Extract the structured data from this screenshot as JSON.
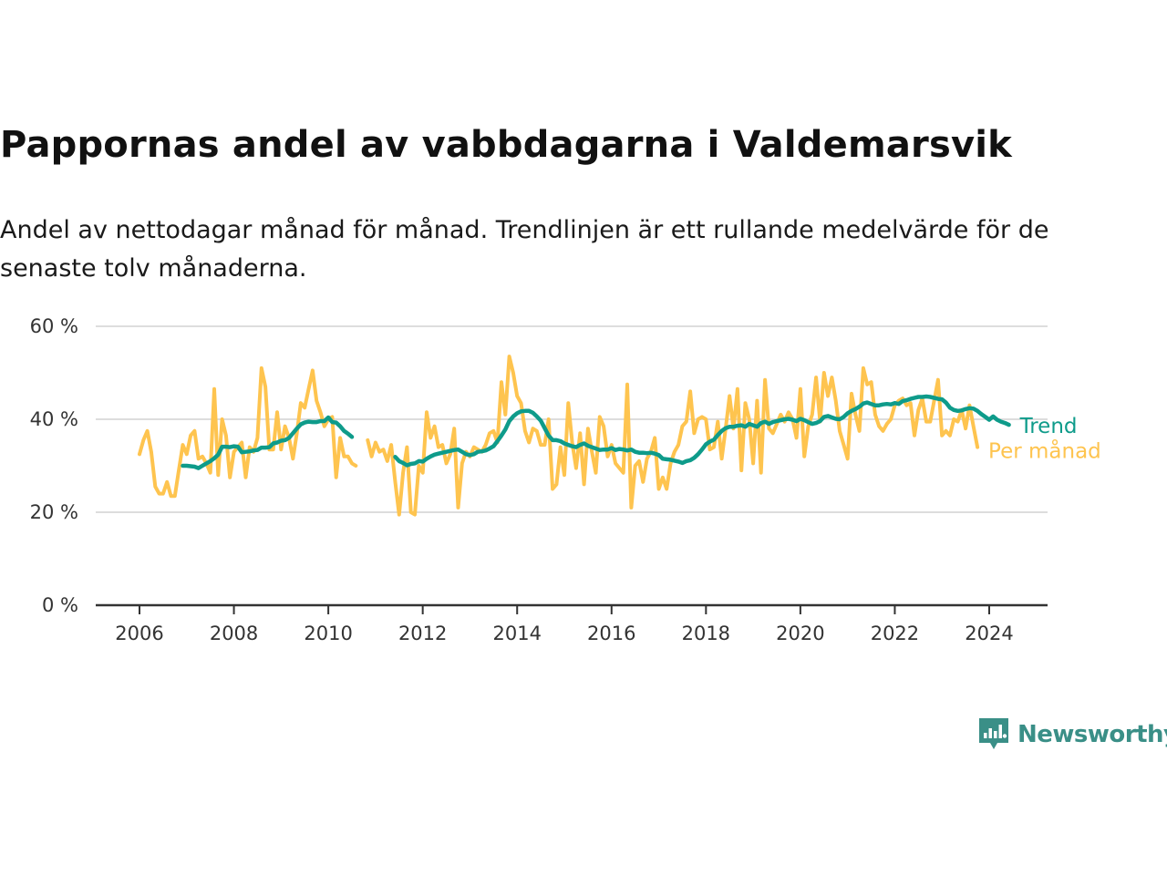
{
  "title": "Pappornas andel av vabbdagarna i Valdemarsvik",
  "subtitle": "Andel av nettodagar månad för månad. Trendlinjen är ett rullande medelvärde för de senaste tolv månaderna.",
  "brand": {
    "name": "Newsworthy"
  },
  "colors": {
    "trend": "#0e9b8a",
    "monthly": "#fec44f",
    "grid": "#dddddd",
    "axis": "#333333"
  },
  "chart_data": {
    "type": "line",
    "ylim": [
      0,
      60
    ],
    "xlim": [
      2005.75,
      2024.75
    ],
    "y_ticks": [
      {
        "value": 0,
        "label": "0 %"
      },
      {
        "value": 20,
        "label": "20 %"
      },
      {
        "value": 40,
        "label": "40 %"
      },
      {
        "value": 60,
        "label": "60 %"
      }
    ],
    "x_ticks": [
      {
        "value": 2006,
        "label": "2006"
      },
      {
        "value": 2008,
        "label": "2008"
      },
      {
        "value": 2010,
        "label": "2010"
      },
      {
        "value": 2012,
        "label": "2012"
      },
      {
        "value": 2014,
        "label": "2014"
      },
      {
        "value": 2016,
        "label": "2016"
      },
      {
        "value": 2018,
        "label": "2018"
      },
      {
        "value": 2020,
        "label": "2020"
      },
      {
        "value": 2022,
        "label": "2022"
      },
      {
        "value": 2024,
        "label": "2024"
      }
    ],
    "grid": true,
    "series": [
      {
        "name": "Per månad",
        "key": "monthly",
        "segments": [
          {
            "start": "2006-01",
            "values": [
              32.5,
              35.5,
              37.5,
              33.0,
              25.5,
              24.0,
              24.0,
              26.5,
              23.5,
              23.5,
              29.0,
              34.5,
              32.5,
              36.5,
              37.5,
              31.5,
              32.0,
              30.5,
              28.5,
              46.5,
              28.0,
              40.0,
              36.5,
              27.5,
              33.0,
              34.0,
              35.0,
              27.5,
              34.0,
              33.0,
              36.0,
              51.0,
              47.0,
              33.5,
              33.5,
              41.5,
              33.5,
              38.5,
              36.0,
              31.5,
              37.0,
              43.5,
              42.5,
              46.5,
              50.5,
              44.0,
              41.5,
              38.5,
              40.0,
              40.5,
              27.5,
              36.0,
              32.0,
              32.0,
              30.5,
              30.0
            ]
          },
          {
            "start": "2010-11",
            "values": [
              35.5,
              32.0,
              35.0,
              33.0,
              33.5,
              31.0,
              34.5,
              26.5,
              19.5,
              28.5,
              34.0,
              20.0,
              19.5,
              30.0,
              28.5,
              41.5,
              36.0,
              38.5,
              34.0,
              34.5,
              30.5,
              32.5,
              38.0,
              21.0,
              30.5,
              33.0,
              32.0,
              34.0,
              33.5,
              33.0,
              34.5,
              37.0,
              37.5,
              35.0,
              48.0,
              41.0,
              53.5,
              50.0,
              45.0,
              43.5,
              37.5,
              35.0,
              38.0,
              37.5,
              34.5,
              34.5,
              40.0,
              25.0,
              26.0,
              34.0,
              28.0,
              43.5,
              35.0,
              29.5,
              37.0,
              26.0,
              38.0,
              33.0,
              28.5,
              40.5,
              38.5,
              32.0,
              34.5,
              30.5,
              29.5,
              28.5,
              47.5,
              21.0,
              30.0,
              31.0,
              26.5,
              31.5,
              33.0,
              36.0,
              25.0,
              27.5,
              25.0,
              30.5,
              33.0,
              34.5,
              38.5,
              39.5,
              46.0,
              37.0,
              40.0,
              40.5,
              40.0,
              33.5,
              34.0,
              39.5,
              31.5,
              38.0,
              45.0,
              38.0,
              46.5,
              29.0,
              43.5,
              40.0,
              30.5,
              44.0,
              28.5,
              48.5,
              38.0,
              37.0,
              39.0,
              41.0,
              39.5,
              41.5,
              40.0,
              36.0,
              46.5,
              32.0,
              38.5,
              41.0,
              49.0,
              39.5,
              50.0,
              45.0,
              49.0,
              44.0,
              37.5,
              34.5,
              31.5,
              45.5,
              41.0,
              37.5,
              51.0,
              47.5,
              48.0,
              41.0,
              38.5,
              37.5,
              39.0,
              40.0,
              43.0,
              44.0,
              44.5,
              43.0,
              43.5,
              36.5,
              42.0,
              44.5,
              39.5,
              39.5,
              44.0,
              48.5,
              36.5,
              37.5,
              36.5,
              40.0,
              39.5,
              42.0,
              38.0,
              43.0,
              38.5,
              34.0
            ]
          }
        ]
      },
      {
        "name": "Trend",
        "key": "trend",
        "segments": [
          {
            "start": "2006-12",
            "values": [
              30.0,
              30.0,
              29.9,
              29.8,
              29.5,
              30.0,
              30.5,
              31.0,
              31.6,
              32.4,
              34.1,
              34.1,
              34.0,
              34.2,
              34.1,
              32.9,
              33.0,
              33.1,
              33.3,
              33.4,
              33.9,
              33.9,
              34.0,
              34.8,
              35.0,
              35.4,
              35.5,
              36.0,
              37.0,
              38.0,
              38.9,
              39.3,
              39.5,
              39.4,
              39.4,
              39.6,
              39.6,
              40.4,
              39.4,
              39.3,
              38.5,
              37.5,
              36.9,
              36.2
            ]
          },
          {
            "start": "2011-06",
            "values": [
              31.9,
              31.0,
              30.6,
              30.1,
              30.4,
              30.5,
              31.0,
              30.9,
              31.5,
              32.0,
              32.4,
              32.6,
              32.8,
              33.0,
              33.2,
              33.4,
              33.5,
              33.0,
              32.5,
              32.3,
              32.5,
              33.0,
              33.1,
              33.3,
              33.7,
              34.2,
              35.3,
              36.5,
              37.8,
              39.6,
              40.6,
              41.3,
              41.7,
              41.8,
              41.8,
              41.4,
              40.6,
              39.7,
              38.1,
              36.5,
              35.5,
              35.5,
              35.3,
              34.8,
              34.5,
              34.2,
              34.0,
              34.5,
              34.8,
              34.3,
              34.0,
              33.7,
              33.4,
              33.5,
              33.5,
              33.8,
              33.4,
              33.6,
              33.5,
              33.3,
              33.5,
              33.0,
              32.8,
              32.8,
              32.7,
              32.8,
              32.6,
              32.3,
              31.5,
              31.4,
              31.3,
              31.1,
              30.9,
              30.6,
              31.0,
              31.2,
              31.7,
              32.5,
              33.5,
              34.6,
              35.2,
              35.6,
              36.6,
              37.5,
              38.1,
              38.4,
              38.4,
              38.6,
              38.7,
              38.4,
              39.0,
              38.7,
              38.4,
              39.2,
              39.5,
              39.0,
              39.4,
              39.6,
              39.8,
              40.0,
              40.1,
              39.9,
              39.6,
              40.1,
              39.8,
              39.4,
              39.0,
              39.2,
              39.6,
              40.5,
              40.7,
              40.4,
              40.1,
              40.0,
              40.5,
              41.3,
              41.8,
              42.2,
              42.7,
              43.4,
              43.6,
              43.3,
              43.0,
              43.0,
              43.2,
              43.3,
              43.2,
              43.5,
              43.3,
              43.9,
              44.1,
              44.4,
              44.6,
              44.8,
              44.8,
              44.9,
              44.8,
              44.6,
              44.4,
              44.3,
              43.6,
              42.5,
              42.0,
              41.8,
              41.9,
              42.2,
              42.4,
              42.3,
              41.8,
              41.1,
              40.5,
              39.9,
              40.6,
              39.9,
              39.5,
              39.2,
              38.8
            ]
          }
        ]
      }
    ]
  }
}
